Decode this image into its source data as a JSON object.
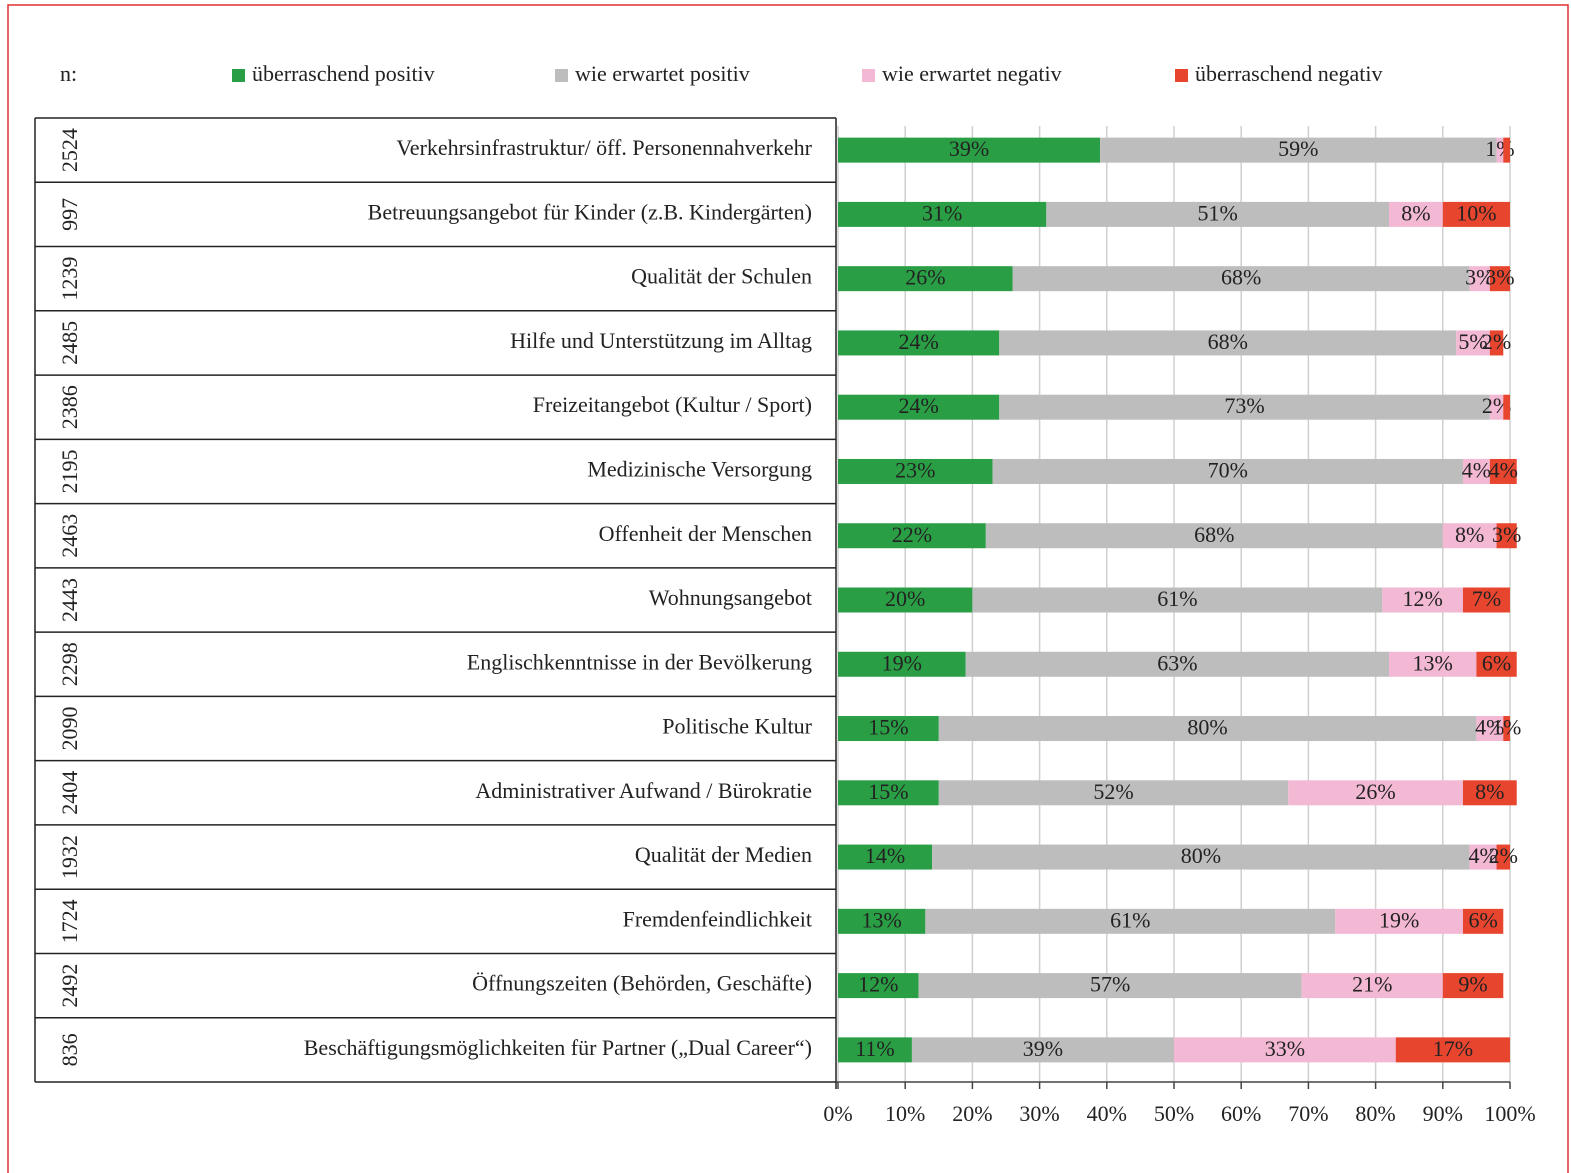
{
  "chart_data": {
    "type": "bar",
    "orientation": "horizontal",
    "stacked": true,
    "n_header": "n:",
    "categories": [
      "Verkehrsinfrastruktur/  öff. Personennahverkehr",
      "Betreuungsangebot für Kinder (z.B. Kindergärten)",
      "Qualität der Schulen",
      "Hilfe und Unterstützung im Alltag",
      "Freizeitangebot (Kultur / Sport)",
      "Medizinische Versorgung",
      "Offenheit der Menschen",
      "Wohnungsangebot",
      "Englischkenntnisse in der Bevölkerung",
      "Politische Kultur",
      "Administrativer Aufwand / Bürokratie",
      "Qualität der Medien",
      "Fremdenfeindlichkeit",
      "Öffnungszeiten (Behörden, Geschäfte)",
      "Beschäftigungsmöglichkeiten für Partner („Dual Career“)"
    ],
    "n": [
      2524,
      997,
      1239,
      2485,
      2386,
      2195,
      2463,
      2443,
      2298,
      2090,
      2404,
      1932,
      1724,
      2492,
      836
    ],
    "series": [
      {
        "name": "überraschend positiv",
        "color": "#2a9e45",
        "values": [
          39,
          31,
          26,
          24,
          24,
          23,
          22,
          20,
          19,
          15,
          15,
          14,
          13,
          12,
          11
        ],
        "value_labels": [
          "39%",
          "31%",
          "26%",
          "24%",
          "24%",
          "23%",
          "22%",
          "20%",
          "19%",
          "15%",
          "15%",
          "14%",
          "13%",
          "12%",
          "11%"
        ]
      },
      {
        "name": "wie erwartet positiv",
        "color": "#bdbdbd",
        "values": [
          59,
          51,
          68,
          68,
          73,
          70,
          68,
          61,
          63,
          80,
          52,
          80,
          61,
          57,
          39
        ],
        "value_labels": [
          "59%",
          "51%",
          "68%",
          "68%",
          "73%",
          "70%",
          "68%",
          "61%",
          "63%",
          "80%",
          "52%",
          "80%",
          "61%",
          "57%",
          "39%"
        ]
      },
      {
        "name": "wie erwartet negativ",
        "color": "#f3b8d4",
        "values": [
          1,
          8,
          3,
          5,
          2,
          4,
          8,
          12,
          13,
          4,
          26,
          4,
          19,
          21,
          33
        ],
        "value_labels": [
          "1%",
          "8%",
          "3%",
          "5%",
          "2%",
          "4%",
          "8%",
          "12%",
          "13%",
          "4%",
          "26%",
          "4%",
          "19%",
          "21%",
          "33%"
        ]
      },
      {
        "name": "überraschend negativ",
        "color": "#e8452f",
        "values": [
          1,
          10,
          3,
          2,
          1,
          4,
          3,
          7,
          6,
          1,
          8,
          2,
          6,
          9,
          17
        ],
        "value_labels": [
          null,
          "10%",
          "3%",
          "2%",
          null,
          "4%",
          "3%",
          "7%",
          "6%",
          "1%",
          "8%",
          "2%",
          "6%",
          "9%",
          "17%"
        ]
      }
    ],
    "xlim": [
      0,
      100
    ],
    "xticks": [
      {
        "value": 0,
        "label": "0%"
      },
      {
        "value": 10,
        "label": "10%"
      },
      {
        "value": 20,
        "label": "20%"
      },
      {
        "value": 30,
        "label": "30%"
      },
      {
        "value": 40,
        "label": "40%"
      },
      {
        "value": 50,
        "label": "50%"
      },
      {
        "value": 60,
        "label": "60%"
      },
      {
        "value": 70,
        "label": "70%"
      },
      {
        "value": 80,
        "label": "80%"
      },
      {
        "value": 90,
        "label": "90%"
      },
      {
        "value": 100,
        "label": "100%"
      }
    ],
    "grid": true,
    "legend": "top"
  }
}
